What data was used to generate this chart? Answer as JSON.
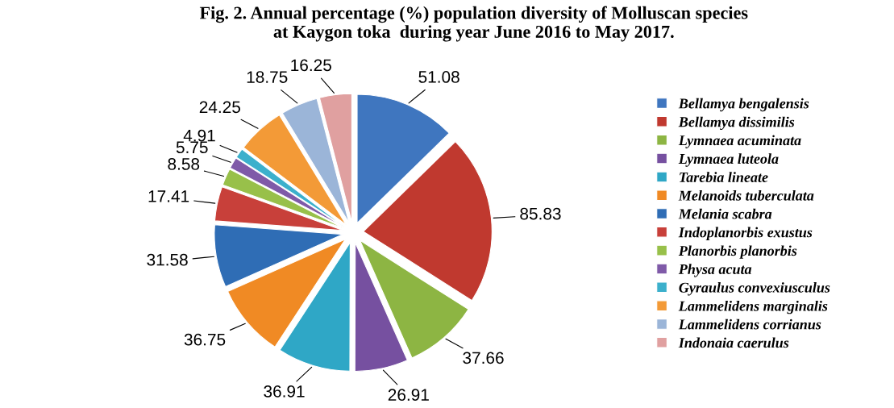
{
  "chart_data": {
    "type": "pie",
    "title": "Fig. 2. Annual percentage (%) population diversity of Molluscan species\nat Kaygon toka  during year June 2016 to May 2017.",
    "categories": [
      "Bellamya bengalensis",
      "Bellamya dissimilis",
      "Lymnaea acuminata",
      "Lymnaea luteola",
      "Tarebia lineate",
      "Melanoids tuberculata",
      "Melania scabra",
      "Indoplanorbis exustus",
      "Planorbis planorbis",
      "Physa acuta",
      "Gyraulus convexiusculus",
      "Lammelidens marginalis",
      "Lammelidens corrianus",
      "Indonaia caerulus"
    ],
    "values": [
      51.08,
      85.83,
      37.66,
      26.91,
      36.91,
      36.75,
      31.58,
      17.41,
      8.58,
      5.75,
      4.91,
      24.25,
      18.75,
      16.25
    ],
    "colors": [
      "#3f76bf",
      "#c0392f",
      "#8db543",
      "#7650a0",
      "#2fa7c6",
      "#f08a24",
      "#2f6db5",
      "#c8403a",
      "#98c04a",
      "#7f5aa8",
      "#3cb0cc",
      "#f39a37",
      "#9bb5d8",
      "#e0a0a0"
    ],
    "data_labels": true,
    "legend": "right"
  }
}
